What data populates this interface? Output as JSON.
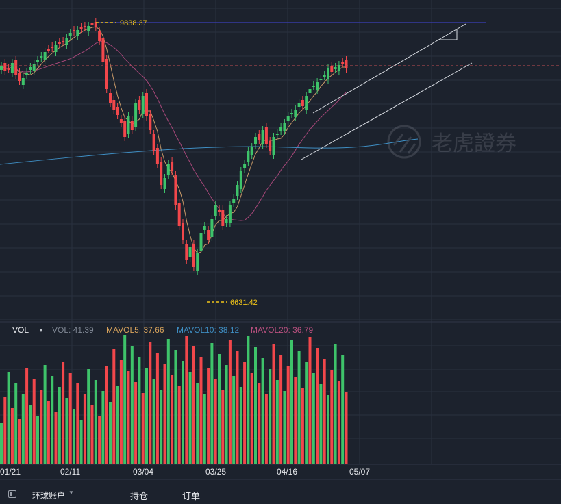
{
  "colors": {
    "background": "#1c222d",
    "grid": "#2a3140",
    "up": "#3ec36a",
    "down": "#f2474b",
    "ma5": "#c99a68",
    "ma20": "#a8487a",
    "ma60": "#3f8fc4",
    "resistance": "#3b3fb8",
    "price_dash": "#c24d54",
    "channel": "#d9dde3",
    "extreme": "#f0c419",
    "vol_label": "#7f8794",
    "mavol5": "#d8a35c",
    "mavol10": "#3f8fc4",
    "mavol20": "#b9507f"
  },
  "price_chart": {
    "high_label": "9838.37",
    "low_label": "6631.42",
    "watermark": "老虎證券",
    "watermark_icon": "tiger-logo-icon"
  },
  "volume_panel": {
    "selector_label": "VOL",
    "indicators": [
      {
        "label": "VOL: 41.39",
        "color": "#7f8794"
      },
      {
        "label": "MAVOL5: 37.66",
        "color": "#d8a35c"
      },
      {
        "label": "MAVOL10: 38.12",
        "color": "#3f8fc4"
      },
      {
        "label": "MAVOL20: 36.79",
        "color": "#b9507f"
      }
    ]
  },
  "x_axis": {
    "labels": [
      "01/21",
      "02/11",
      "03/04",
      "03/25",
      "04/16",
      "05/07"
    ]
  },
  "bottom_bar": {
    "account_label": "环球账户",
    "positions_tab": "持仓",
    "orders_tab": "订单"
  }
}
